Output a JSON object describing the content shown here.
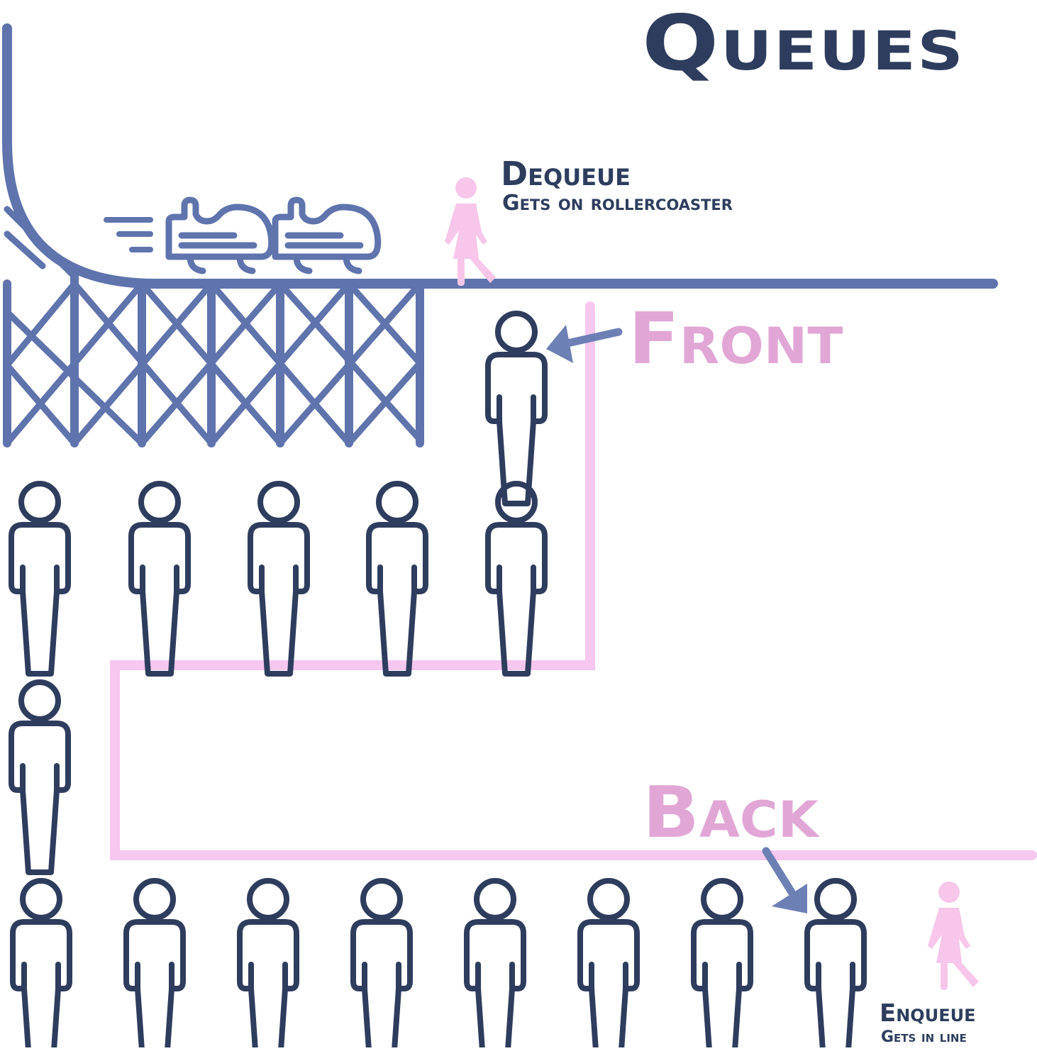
{
  "title": "Queues",
  "dequeue": {
    "label": "Dequeue",
    "sublabel": "Gets on rollercoaster"
  },
  "enqueue": {
    "label": "Enqueue",
    "sublabel": "Gets in line"
  },
  "front_label": "Front",
  "back_label": "Back",
  "colors": {
    "navy": "#2e3d5e",
    "slate_blue": "#5f74ad",
    "pink_line": "#f6c7ef",
    "pink_label": "#e1a6d6",
    "pink_figure": "#f7c6ea",
    "arrow": "#6d80b5"
  },
  "icons": {
    "person": "person-outline-icon",
    "walker": "walking-person-icon",
    "coaster": "rollercoaster-icon",
    "arrow": "arrow-icon"
  },
  "queue_people_count": 15
}
